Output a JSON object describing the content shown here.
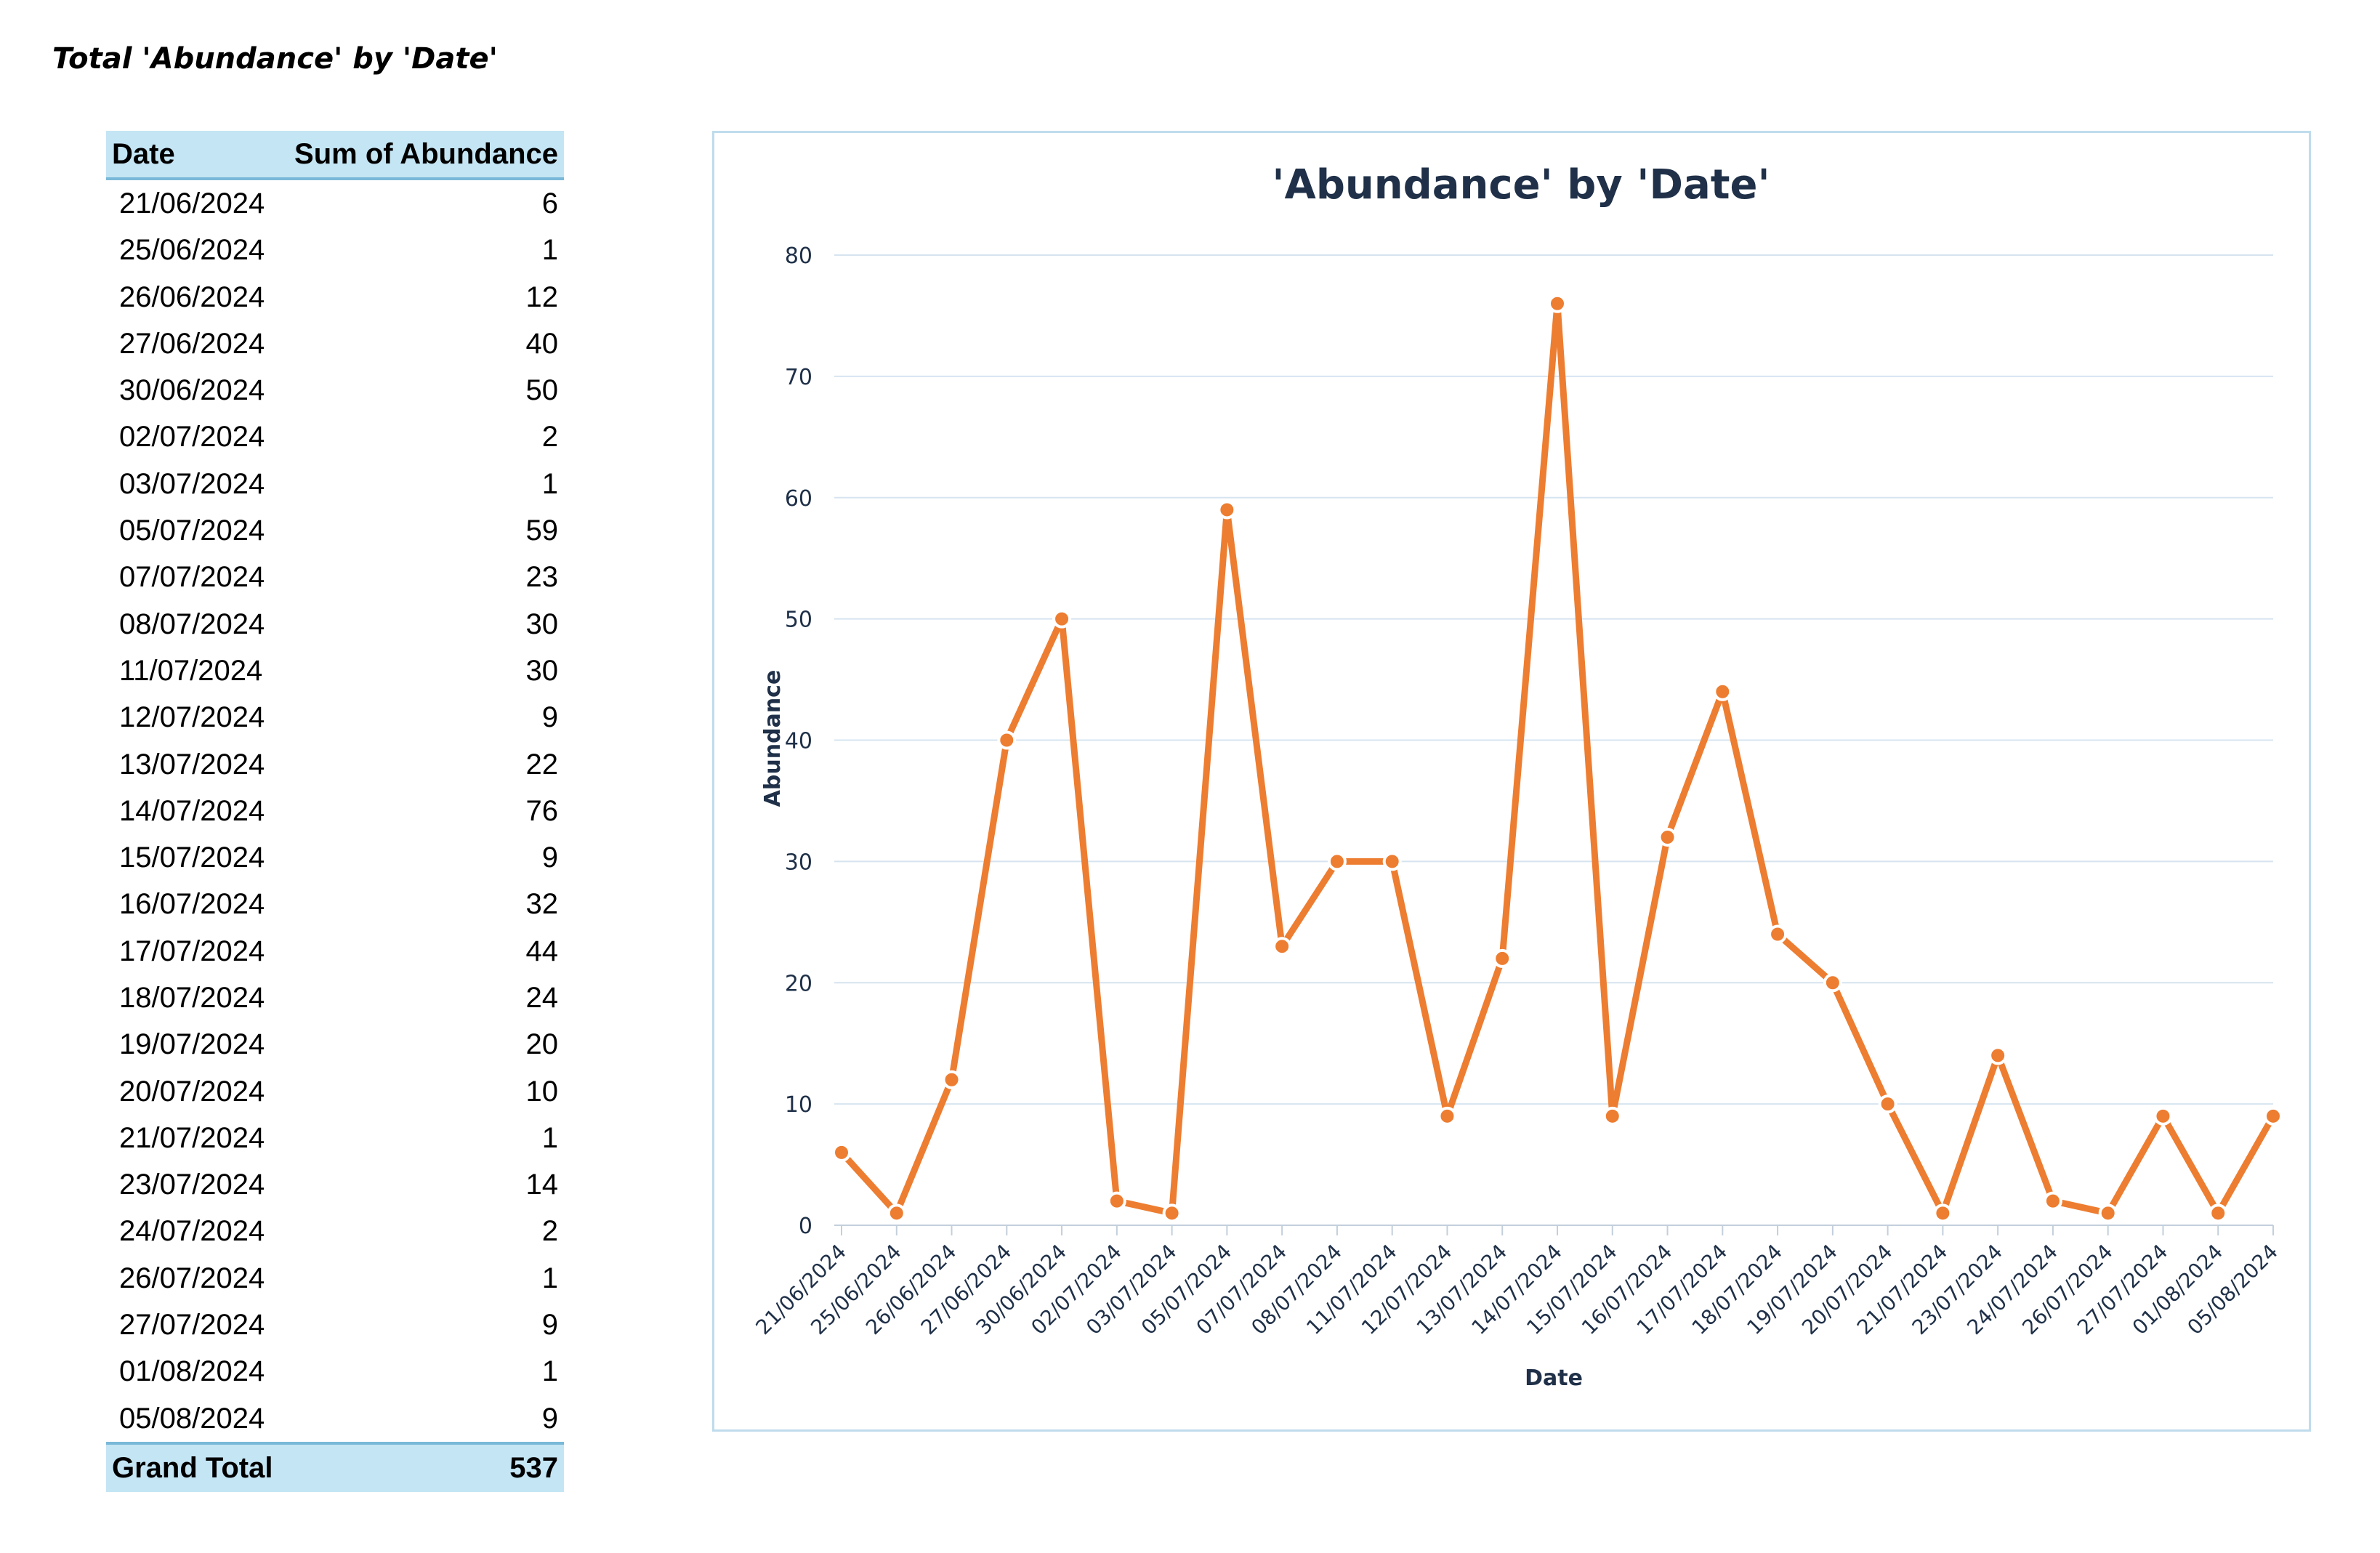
{
  "page": {
    "title": "Total 'Abundance' by 'Date'"
  },
  "table": {
    "headers": {
      "date": "Date",
      "sum": "Sum of Abundance"
    },
    "rows": [
      {
        "date": "21/06/2024",
        "value": "6"
      },
      {
        "date": "25/06/2024",
        "value": "1"
      },
      {
        "date": "26/06/2024",
        "value": "12"
      },
      {
        "date": "27/06/2024",
        "value": "40"
      },
      {
        "date": "30/06/2024",
        "value": "50"
      },
      {
        "date": "02/07/2024",
        "value": "2"
      },
      {
        "date": "03/07/2024",
        "value": "1"
      },
      {
        "date": "05/07/2024",
        "value": "59"
      },
      {
        "date": "07/07/2024",
        "value": "23"
      },
      {
        "date": "08/07/2024",
        "value": "30"
      },
      {
        "date": "11/07/2024",
        "value": "30"
      },
      {
        "date": "12/07/2024",
        "value": "9"
      },
      {
        "date": "13/07/2024",
        "value": "22"
      },
      {
        "date": "14/07/2024",
        "value": "76"
      },
      {
        "date": "15/07/2024",
        "value": "9"
      },
      {
        "date": "16/07/2024",
        "value": "32"
      },
      {
        "date": "17/07/2024",
        "value": "44"
      },
      {
        "date": "18/07/2024",
        "value": "24"
      },
      {
        "date": "19/07/2024",
        "value": "20"
      },
      {
        "date": "20/07/2024",
        "value": "10"
      },
      {
        "date": "21/07/2024",
        "value": "1"
      },
      {
        "date": "23/07/2024",
        "value": "14"
      },
      {
        "date": "24/07/2024",
        "value": "2"
      },
      {
        "date": "26/07/2024",
        "value": "1"
      },
      {
        "date": "27/07/2024",
        "value": "9"
      },
      {
        "date": "01/08/2024",
        "value": "1"
      },
      {
        "date": "05/08/2024",
        "value": "9"
      }
    ],
    "total": {
      "label": "Grand Total",
      "value": "537"
    }
  },
  "chart_data": {
    "type": "line",
    "title": "'Abundance' by 'Date'",
    "xlabel": "Date",
    "ylabel": "Abundance",
    "ylim": [
      0,
      80
    ],
    "yticks": [
      0,
      10,
      20,
      30,
      40,
      50,
      60,
      70,
      80
    ],
    "grid": true,
    "legend": "none",
    "categories": [
      "21/06/2024",
      "25/06/2024",
      "26/06/2024",
      "27/06/2024",
      "30/06/2024",
      "02/07/2024",
      "03/07/2024",
      "05/07/2024",
      "07/07/2024",
      "08/07/2024",
      "11/07/2024",
      "12/07/2024",
      "13/07/2024",
      "14/07/2024",
      "15/07/2024",
      "16/07/2024",
      "17/07/2024",
      "18/07/2024",
      "19/07/2024",
      "20/07/2024",
      "21/07/2024",
      "23/07/2024",
      "24/07/2024",
      "26/07/2024",
      "27/07/2024",
      "01/08/2024",
      "05/08/2024"
    ],
    "series": [
      {
        "values": [
          6,
          1,
          12,
          40,
          50,
          2,
          1,
          59,
          23,
          30,
          30,
          9,
          22,
          76,
          9,
          32,
          44,
          24,
          20,
          10,
          1,
          14,
          2,
          1,
          9,
          1,
          9
        ]
      }
    ],
    "colors": {
      "line": "#ed7d31",
      "marker_stroke": "#ffffff",
      "grid": "#d6e4f0",
      "text": "#1f3048"
    }
  }
}
